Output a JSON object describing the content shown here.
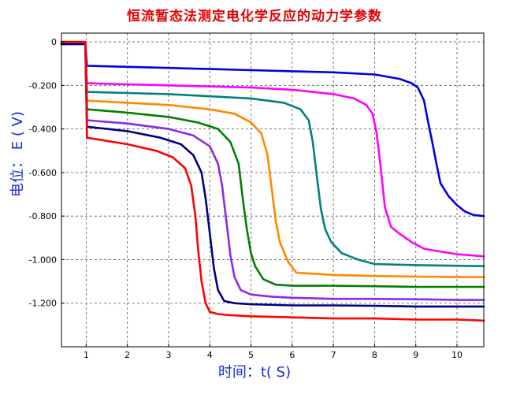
{
  "chart_data": {
    "type": "line",
    "title": "恒流暂态法测定电化学反应的动力学参数",
    "xlabel": "时间：t( S)",
    "ylabel": "电位： E ( V)",
    "xlim": [
      0.4,
      10.65
    ],
    "ylim": [
      0.04,
      -1.4
    ],
    "x_ticks": [
      1,
      2,
      3,
      4,
      5,
      6,
      7,
      8,
      9,
      10
    ],
    "x_tick_labels": [
      "1",
      "2",
      "3",
      "4",
      "5",
      "6",
      "7",
      "8",
      "9",
      "10"
    ],
    "y_ticks": [
      0,
      -0.2,
      -0.4,
      -0.6,
      -0.8,
      -1.0,
      -1.2
    ],
    "y_tick_labels": [
      "0",
      "-0.200",
      "-0.400",
      "-0.600",
      "-0.800",
      "-1.000",
      "-1.200"
    ],
    "grid": true,
    "series": [
      {
        "color": "#0000e0",
        "x": [
          0.4,
          0.98,
          1.02,
          2,
          3,
          4,
          5,
          6,
          7,
          8,
          8.6,
          8.9,
          9.05,
          9.2,
          9.3,
          9.4,
          9.5,
          9.6,
          9.8,
          10.0,
          10.2,
          10.4,
          10.65
        ],
        "y": [
          -0.01,
          -0.01,
          -0.11,
          -0.115,
          -0.12,
          -0.125,
          -0.13,
          -0.135,
          -0.14,
          -0.15,
          -0.17,
          -0.19,
          -0.21,
          -0.27,
          -0.37,
          -0.46,
          -0.56,
          -0.65,
          -0.71,
          -0.75,
          -0.78,
          -0.795,
          -0.8
        ]
      },
      {
        "color": "#ff00ff",
        "x": [
          0.4,
          0.98,
          1.02,
          2,
          3,
          4,
          5,
          6,
          7,
          7.5,
          7.8,
          7.95,
          8.05,
          8.15,
          8.25,
          8.4,
          8.6,
          8.9,
          9.2,
          9.5,
          10,
          10.65
        ],
        "y": [
          -0.01,
          -0.01,
          -0.19,
          -0.195,
          -0.2,
          -0.205,
          -0.21,
          -0.22,
          -0.24,
          -0.26,
          -0.29,
          -0.33,
          -0.42,
          -0.58,
          -0.76,
          -0.85,
          -0.88,
          -0.92,
          -0.95,
          -0.96,
          -0.975,
          -0.985
        ]
      },
      {
        "color": "#008080",
        "x": [
          0.4,
          0.98,
          1.02,
          2,
          3,
          4,
          5,
          5.8,
          6.2,
          6.4,
          6.5,
          6.6,
          6.7,
          6.8,
          6.95,
          7.2,
          7.6,
          8,
          9,
          10,
          10.65
        ],
        "y": [
          -0.01,
          -0.01,
          -0.23,
          -0.235,
          -0.24,
          -0.25,
          -0.26,
          -0.28,
          -0.31,
          -0.36,
          -0.46,
          -0.62,
          -0.77,
          -0.86,
          -0.92,
          -0.97,
          -1.0,
          -1.02,
          -1.025,
          -1.028,
          -1.03
        ]
      },
      {
        "color": "#ff8800",
        "x": [
          0.4,
          0.98,
          1.02,
          2,
          3,
          4,
          4.6,
          5.0,
          5.25,
          5.4,
          5.5,
          5.6,
          5.7,
          5.9,
          6.1,
          7,
          8,
          9,
          10,
          10.65
        ],
        "y": [
          -0.01,
          -0.01,
          -0.27,
          -0.28,
          -0.29,
          -0.31,
          -0.33,
          -0.37,
          -0.42,
          -0.52,
          -0.67,
          -0.82,
          -0.92,
          -1.01,
          -1.06,
          -1.07,
          -1.075,
          -1.078,
          -1.08,
          -1.08
        ]
      },
      {
        "color": "#008000",
        "x": [
          0.4,
          0.98,
          1.02,
          2,
          3,
          3.7,
          4.2,
          4.5,
          4.7,
          4.8,
          4.9,
          5.0,
          5.1,
          5.3,
          5.6,
          6,
          7,
          8,
          9,
          10,
          10.65
        ],
        "y": [
          -0.01,
          -0.01,
          -0.31,
          -0.325,
          -0.345,
          -0.37,
          -0.4,
          -0.46,
          -0.56,
          -0.72,
          -0.86,
          -0.97,
          -1.03,
          -1.09,
          -1.115,
          -1.12,
          -1.12,
          -1.122,
          -1.125,
          -1.125,
          -1.125
        ]
      },
      {
        "color": "#8a2be2",
        "x": [
          0.4,
          0.98,
          1.02,
          2,
          3,
          3.6,
          4.0,
          4.2,
          4.3,
          4.4,
          4.5,
          4.6,
          4.75,
          5.0,
          5.5,
          6,
          7,
          8,
          9,
          10,
          10.65
        ],
        "y": [
          -0.01,
          -0.01,
          -0.36,
          -0.375,
          -0.4,
          -0.43,
          -0.48,
          -0.56,
          -0.66,
          -0.82,
          -0.98,
          -1.08,
          -1.14,
          -1.16,
          -1.17,
          -1.175,
          -1.18,
          -1.18,
          -1.182,
          -1.185,
          -1.185
        ]
      },
      {
        "color": "#000080",
        "x": [
          0.4,
          0.98,
          1.02,
          2,
          2.8,
          3.3,
          3.6,
          3.8,
          3.9,
          4.0,
          4.1,
          4.2,
          4.35,
          4.6,
          5,
          6,
          7,
          8,
          9,
          10,
          10.65
        ],
        "y": [
          -0.01,
          -0.01,
          -0.39,
          -0.41,
          -0.44,
          -0.47,
          -0.52,
          -0.6,
          -0.72,
          -0.88,
          -1.04,
          -1.14,
          -1.19,
          -1.2,
          -1.205,
          -1.21,
          -1.21,
          -1.212,
          -1.215,
          -1.215,
          -1.215
        ]
      },
      {
        "color": "#ff0000",
        "x": [
          0.4,
          0.98,
          1.02,
          2,
          2.7,
          3.1,
          3.4,
          3.55,
          3.65,
          3.72,
          3.8,
          3.9,
          4.0,
          4.2,
          4.5,
          5,
          6,
          7,
          8,
          9,
          10,
          10.65
        ],
        "y": [
          0.0,
          0.0,
          -0.44,
          -0.47,
          -0.5,
          -0.53,
          -0.58,
          -0.66,
          -0.8,
          -0.96,
          -1.1,
          -1.2,
          -1.24,
          -1.25,
          -1.255,
          -1.26,
          -1.265,
          -1.27,
          -1.27,
          -1.275,
          -1.275,
          -1.28
        ]
      }
    ]
  }
}
